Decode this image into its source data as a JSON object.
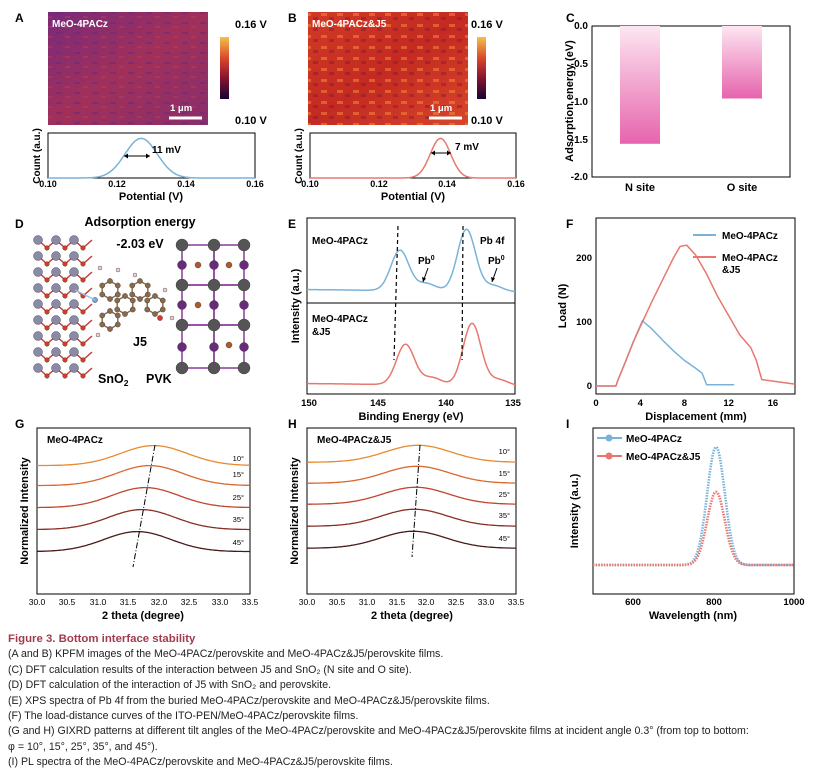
{
  "panel_labels": {
    "A": "A",
    "B": "B",
    "C": "C",
    "D": "D",
    "E": "E",
    "F": "F",
    "G": "G",
    "H": "H",
    "I": "I"
  },
  "colors": {
    "kpfm_low": "#2a0a4a",
    "kpfm_mid": "#c0392b",
    "kpfm_high": "#f5b041",
    "blue": "#7ab3d9",
    "red": "#e8786e",
    "pink": "#e66bb0",
    "caption": "#a23b4d"
  },
  "panelA": {
    "image_label": "MeO-4PACz",
    "cbar_top": "0.16 V",
    "cbar_bottom": "0.10 V",
    "scalebar": "1 μm",
    "fwhm": "11 mV",
    "xlabel": "Potential (V)",
    "ylabel": "Count (a.u.)"
  },
  "panelB": {
    "image_label": "MeO-4PACz&J5",
    "cbar_top": "0.16 V",
    "cbar_bottom": "0.10 V",
    "scalebar": "1 μm",
    "fwhm": "7 mV",
    "xlabel": "Potential (V)",
    "ylabel": "Count (a.u.)"
  },
  "panelD": {
    "title": "Adsorption energy",
    "energy": "-2.03 eV",
    "label_j5": "J5",
    "label_sno2": "SnO",
    "label_sno2_sub": "2",
    "label_pvk": "PVK"
  },
  "panelE": {
    "top_label": "MeO-4PACz",
    "bottom_label_1": "MeO-4PACz",
    "bottom_label_2": "&J5",
    "pb4f": "Pb 4f",
    "pb0_a": "Pb",
    "pb0_b": "Pb",
    "pb0_sup": "0"
  },
  "panelF": {
    "legend": [
      "MeO-4PACz",
      "MeO-4PACz",
      "&J5"
    ]
  },
  "panelG": {
    "label": "MeO-4PACz",
    "angles": [
      "10°",
      "15°",
      "25°",
      "35°",
      "45°"
    ]
  },
  "panelH": {
    "label": "MeO-4PACz&J5",
    "angles": [
      "10°",
      "15°",
      "25°",
      "35°",
      "45°"
    ]
  },
  "chart_data": [
    {
      "id": "A",
      "type": "line",
      "title": "",
      "xlabel": "Potential (V)",
      "ylabel": "Count (a.u.)",
      "xlim": [
        0.1,
        0.16
      ],
      "x_ticks": [
        "0.10",
        "0.12",
        "0.14",
        "0.16"
      ],
      "series": [
        {
          "name": "MeO-4PACz",
          "peak_x": 0.127,
          "fwhm_mV": 11
        }
      ]
    },
    {
      "id": "B",
      "type": "line",
      "title": "",
      "xlabel": "Potential (V)",
      "ylabel": "Count (a.u.)",
      "xlim": [
        0.1,
        0.16
      ],
      "x_ticks": [
        "0.10",
        "0.12",
        "0.14",
        "0.16"
      ],
      "series": [
        {
          "name": "MeO-4PACz&J5",
          "peak_x": 0.138,
          "fwhm_mV": 7
        }
      ]
    },
    {
      "id": "C",
      "type": "bar",
      "title": "",
      "xlabel": "",
      "ylabel": "Adsorption energy (eV)",
      "ylim": [
        -2.0,
        0.0
      ],
      "y_ticks": [
        "0.0",
        "-0.5",
        "-1.0",
        "-1.5",
        "-2.0"
      ],
      "categories": [
        "N site",
        "O site"
      ],
      "values": [
        -1.56,
        -0.96
      ]
    },
    {
      "id": "E",
      "type": "line",
      "title": "",
      "xlabel": "Binding Energy (eV)",
      "ylabel": "Intensity (a.u.)",
      "xlim": [
        150,
        135
      ],
      "x_ticks": [
        "150",
        "145",
        "140",
        "135"
      ],
      "series": [
        {
          "name": "MeO-4PACz",
          "peaks": [
            143.3,
            138.5
          ]
        },
        {
          "name": "MeO-4PACz&J5",
          "peaks": [
            142.9,
            138.1
          ]
        }
      ]
    },
    {
      "id": "F",
      "type": "line",
      "title": "",
      "xlabel": "Displacement (mm)",
      "ylabel": "Load (N)",
      "xlim": [
        0,
        18
      ],
      "ylim": [
        0,
        250
      ],
      "x_ticks": [
        "0",
        "4",
        "8",
        "12",
        "16"
      ],
      "y_ticks": [
        "0",
        "100",
        "200"
      ],
      "series": [
        {
          "name": "MeO-4PACz",
          "x": [
            0,
            1.8,
            2.0,
            2.6,
            3.4,
            4.2,
            5.0,
            6.0,
            7.0,
            8.0,
            9.0,
            9.6,
            10.0,
            12.5
          ],
          "y": [
            0,
            0,
            10,
            35,
            70,
            102,
            90,
            72,
            55,
            40,
            28,
            20,
            2,
            2
          ]
        },
        {
          "name": "MeO-4PACz&J5",
          "x": [
            0,
            1.8,
            2.0,
            2.6,
            3.4,
            4.2,
            5.0,
            6.0,
            7.0,
            7.6,
            8.2,
            9.0,
            10.0,
            11.0,
            12.0,
            13.0,
            14.0,
            14.5,
            15.0,
            18.0
          ],
          "y": [
            0,
            0,
            10,
            35,
            70,
            100,
            130,
            165,
            200,
            218,
            220,
            205,
            175,
            140,
            110,
            80,
            60,
            40,
            10,
            3
          ]
        }
      ]
    },
    {
      "id": "G",
      "type": "line",
      "title": "",
      "xlabel": "2 theta (degree)",
      "ylabel": "Normalized Intensity",
      "xlim": [
        30.0,
        33.5
      ],
      "x_ticks": [
        "30.0",
        "30.5",
        "31.0",
        "31.5",
        "32.0",
        "32.5",
        "33.0",
        "33.5"
      ],
      "series": [
        {
          "name": "10°",
          "peak": 31.92
        },
        {
          "name": "15°",
          "peak": 31.85
        },
        {
          "name": "25°",
          "peak": 31.78
        },
        {
          "name": "35°",
          "peak": 31.72
        },
        {
          "name": "45°",
          "peak": 31.65
        }
      ]
    },
    {
      "id": "H",
      "type": "line",
      "title": "",
      "xlabel": "2 theta (degree)",
      "ylabel": "Normalized Intensity",
      "xlim": [
        30.0,
        33.5
      ],
      "x_ticks": [
        "30.0",
        "30.5",
        "31.0",
        "31.5",
        "32.0",
        "32.5",
        "33.0",
        "33.5"
      ],
      "series": [
        {
          "name": "10°",
          "peak": 31.86
        },
        {
          "name": "15°",
          "peak": 31.84
        },
        {
          "name": "25°",
          "peak": 31.82
        },
        {
          "name": "35°",
          "peak": 31.8
        },
        {
          "name": "45°",
          "peak": 31.78
        }
      ]
    },
    {
      "id": "I",
      "type": "line",
      "title": "",
      "xlabel": "Wavelength (nm)",
      "ylabel": "Intensity (a.u.)",
      "xlim": [
        500,
        1000
      ],
      "x_ticks": [
        "600",
        "800",
        "1000"
      ],
      "series": [
        {
          "name": "MeO-4PACz",
          "peak_x": 806,
          "peak_rel": 1.0
        },
        {
          "name": "MeO-4PACz&J5",
          "peak_x": 806,
          "peak_rel": 0.62
        }
      ]
    }
  ],
  "caption": {
    "title": "Figure 3.  Bottom interface stability",
    "lines": [
      "(A and B) KPFM images of the MeO-4PACz/perovskite and MeO-4PACz&J5/perovskite films.",
      "(C) DFT calculation results of the interaction between J5 and SnO₂ (N site and O site).",
      "(D) DFT calculation of the interaction of J5 with SnO₂ and perovskite.",
      "(E) XPS spectra of Pb 4f from the buried MeO-4PACz/perovskite and MeO-4PACz&J5/perovskite films.",
      "(F) The load-distance curves of the ITO-PEN/MeO-4PACz/perovskite films.",
      "(G and H) GIXRD patterns at different tilt angles of the MeO-4PACz/perovskite and MeO-4PACz&J5/perovskite films at incident angle 0.3° (from top to bottom:",
      "φ = 10°, 15°, 25°, 35°, and 45°).",
      "(I) PL spectra of the MeO-4PACz/perovskite and MeO-4PACz&J5/perovskite films."
    ]
  }
}
